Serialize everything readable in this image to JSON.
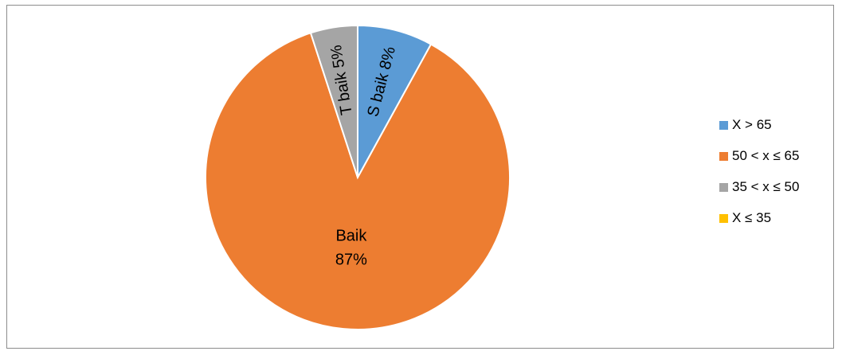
{
  "chart_data": {
    "type": "pie",
    "title": "",
    "start_angle_deg": 0,
    "direction": "clockwise",
    "slices": [
      {
        "name": "X > 65",
        "label": "S baik 8%",
        "value": 8,
        "color": "#5B9BD5"
      },
      {
        "name": "50 < x ≤ 65",
        "label_lines": [
          "Baik",
          "87%"
        ],
        "value": 87,
        "color": "#ED7D31"
      },
      {
        "name": "35 < x ≤ 50",
        "label": "T baik 5%",
        "value": 5,
        "color": "#A5A5A5"
      },
      {
        "name": "X ≤ 35",
        "label": "",
        "value": 0,
        "color": "#FFC000"
      }
    ],
    "legend_position": "right"
  }
}
